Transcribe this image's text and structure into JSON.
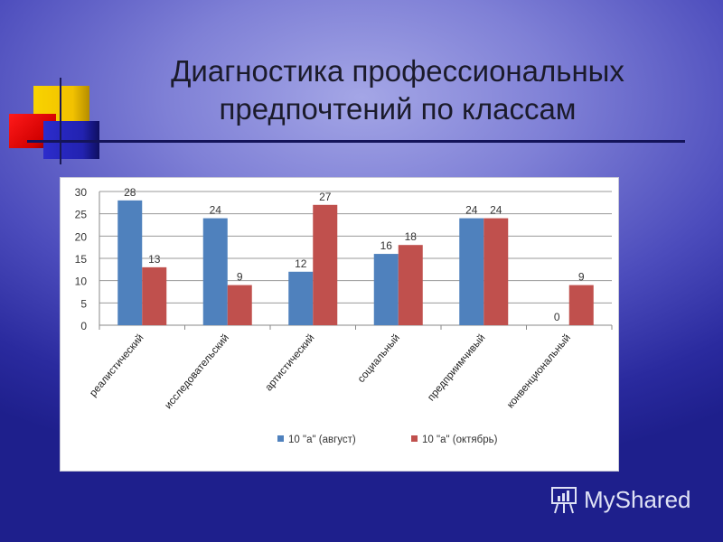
{
  "slide": {
    "title_line1": "Диагностика профессиональных",
    "title_line2": "предпочтений по классам"
  },
  "watermark": {
    "text": "MyShared",
    "icon": "presentation-board-icon"
  },
  "colors": {
    "series1": "#4f81bd",
    "series2": "#c0504d"
  },
  "chart_data": {
    "type": "bar",
    "title": "Диагностика профессиональных предпочтений по классам",
    "xlabel": "",
    "ylabel": "",
    "ylim": [
      0,
      30
    ],
    "yticks": [
      0,
      5,
      10,
      15,
      20,
      25,
      30
    ],
    "grid": true,
    "legend_position": "bottom",
    "categories": [
      "реалистический",
      "исследовательский",
      "артистический",
      "социальный",
      "предприимчивый",
      "конвенциональный"
    ],
    "series": [
      {
        "name": "10 \"а\" (август)",
        "color": "#4f81bd",
        "values": [
          28,
          24,
          12,
          16,
          24,
          0
        ]
      },
      {
        "name": "10 \"а\" (октябрь)",
        "color": "#c0504d",
        "values": [
          13,
          9,
          27,
          18,
          24,
          9
        ]
      }
    ]
  }
}
